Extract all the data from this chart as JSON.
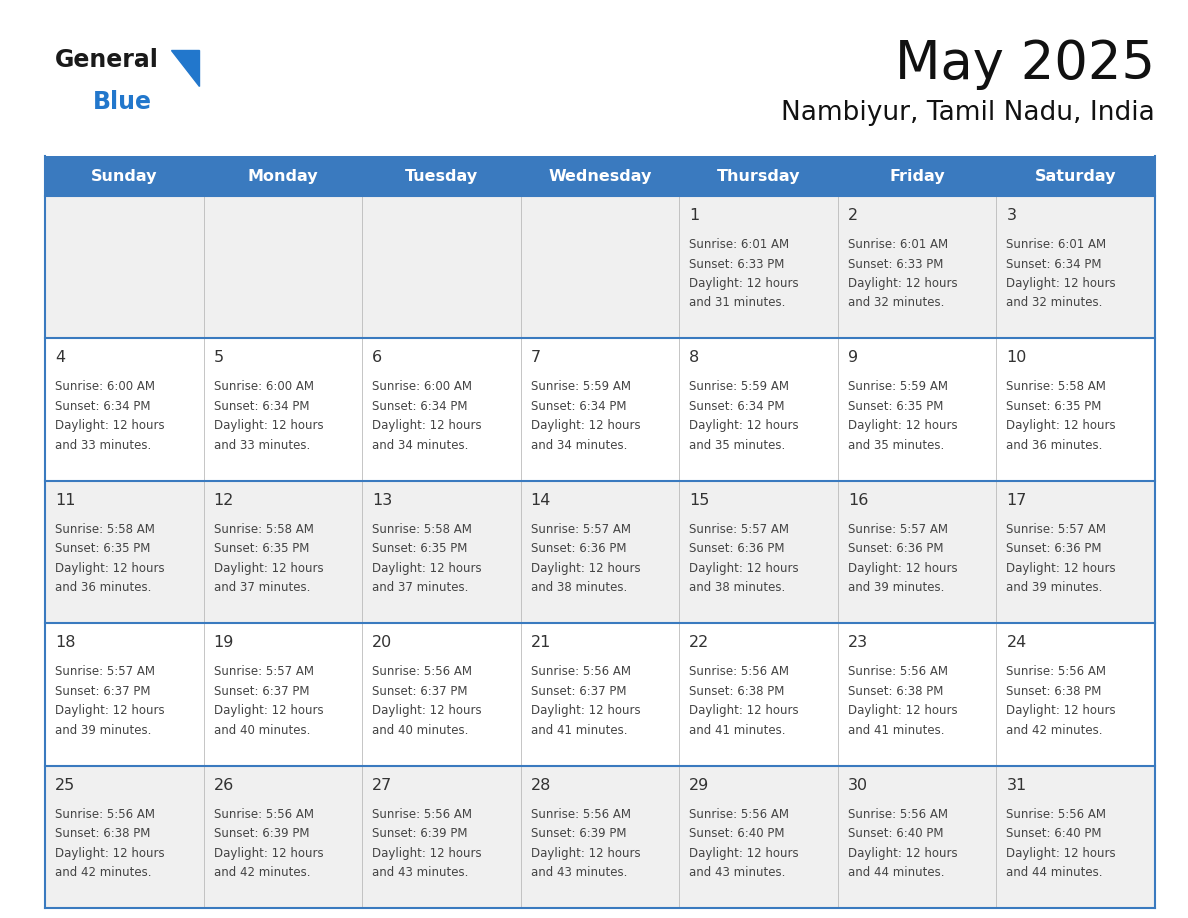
{
  "title": "May 2025",
  "subtitle": "Nambiyur, Tamil Nadu, India",
  "header_bg_color": "#3a7abf",
  "header_text_color": "#ffffff",
  "day_names": [
    "Sunday",
    "Monday",
    "Tuesday",
    "Wednesday",
    "Thursday",
    "Friday",
    "Saturday"
  ],
  "row_bg_colors": [
    "#f0f0f0",
    "#ffffff",
    "#f0f0f0",
    "#ffffff",
    "#f0f0f0"
  ],
  "grid_line_color": "#3a7abf",
  "date_color": "#333333",
  "info_color": "#444444",
  "logo_general_color": "#1a1a1a",
  "logo_blue_color": "#2277cc",
  "logo_triangle_color": "#2277cc",
  "calendar_data": [
    [
      null,
      null,
      null,
      null,
      {
        "day": 1,
        "sunrise": "6:01 AM",
        "sunset": "6:33 PM",
        "daylight_hours": 12,
        "daylight_minutes": 31
      },
      {
        "day": 2,
        "sunrise": "6:01 AM",
        "sunset": "6:33 PM",
        "daylight_hours": 12,
        "daylight_minutes": 32
      },
      {
        "day": 3,
        "sunrise": "6:01 AM",
        "sunset": "6:34 PM",
        "daylight_hours": 12,
        "daylight_minutes": 32
      }
    ],
    [
      {
        "day": 4,
        "sunrise": "6:00 AM",
        "sunset": "6:34 PM",
        "daylight_hours": 12,
        "daylight_minutes": 33
      },
      {
        "day": 5,
        "sunrise": "6:00 AM",
        "sunset": "6:34 PM",
        "daylight_hours": 12,
        "daylight_minutes": 33
      },
      {
        "day": 6,
        "sunrise": "6:00 AM",
        "sunset": "6:34 PM",
        "daylight_hours": 12,
        "daylight_minutes": 34
      },
      {
        "day": 7,
        "sunrise": "5:59 AM",
        "sunset": "6:34 PM",
        "daylight_hours": 12,
        "daylight_minutes": 34
      },
      {
        "day": 8,
        "sunrise": "5:59 AM",
        "sunset": "6:34 PM",
        "daylight_hours": 12,
        "daylight_minutes": 35
      },
      {
        "day": 9,
        "sunrise": "5:59 AM",
        "sunset": "6:35 PM",
        "daylight_hours": 12,
        "daylight_minutes": 35
      },
      {
        "day": 10,
        "sunrise": "5:58 AM",
        "sunset": "6:35 PM",
        "daylight_hours": 12,
        "daylight_minutes": 36
      }
    ],
    [
      {
        "day": 11,
        "sunrise": "5:58 AM",
        "sunset": "6:35 PM",
        "daylight_hours": 12,
        "daylight_minutes": 36
      },
      {
        "day": 12,
        "sunrise": "5:58 AM",
        "sunset": "6:35 PM",
        "daylight_hours": 12,
        "daylight_minutes": 37
      },
      {
        "day": 13,
        "sunrise": "5:58 AM",
        "sunset": "6:35 PM",
        "daylight_hours": 12,
        "daylight_minutes": 37
      },
      {
        "day": 14,
        "sunrise": "5:57 AM",
        "sunset": "6:36 PM",
        "daylight_hours": 12,
        "daylight_minutes": 38
      },
      {
        "day": 15,
        "sunrise": "5:57 AM",
        "sunset": "6:36 PM",
        "daylight_hours": 12,
        "daylight_minutes": 38
      },
      {
        "day": 16,
        "sunrise": "5:57 AM",
        "sunset": "6:36 PM",
        "daylight_hours": 12,
        "daylight_minutes": 39
      },
      {
        "day": 17,
        "sunrise": "5:57 AM",
        "sunset": "6:36 PM",
        "daylight_hours": 12,
        "daylight_minutes": 39
      }
    ],
    [
      {
        "day": 18,
        "sunrise": "5:57 AM",
        "sunset": "6:37 PM",
        "daylight_hours": 12,
        "daylight_minutes": 39
      },
      {
        "day": 19,
        "sunrise": "5:57 AM",
        "sunset": "6:37 PM",
        "daylight_hours": 12,
        "daylight_minutes": 40
      },
      {
        "day": 20,
        "sunrise": "5:56 AM",
        "sunset": "6:37 PM",
        "daylight_hours": 12,
        "daylight_minutes": 40
      },
      {
        "day": 21,
        "sunrise": "5:56 AM",
        "sunset": "6:37 PM",
        "daylight_hours": 12,
        "daylight_minutes": 41
      },
      {
        "day": 22,
        "sunrise": "5:56 AM",
        "sunset": "6:38 PM",
        "daylight_hours": 12,
        "daylight_minutes": 41
      },
      {
        "day": 23,
        "sunrise": "5:56 AM",
        "sunset": "6:38 PM",
        "daylight_hours": 12,
        "daylight_minutes": 41
      },
      {
        "day": 24,
        "sunrise": "5:56 AM",
        "sunset": "6:38 PM",
        "daylight_hours": 12,
        "daylight_minutes": 42
      }
    ],
    [
      {
        "day": 25,
        "sunrise": "5:56 AM",
        "sunset": "6:38 PM",
        "daylight_hours": 12,
        "daylight_minutes": 42
      },
      {
        "day": 26,
        "sunrise": "5:56 AM",
        "sunset": "6:39 PM",
        "daylight_hours": 12,
        "daylight_minutes": 42
      },
      {
        "day": 27,
        "sunrise": "5:56 AM",
        "sunset": "6:39 PM",
        "daylight_hours": 12,
        "daylight_minutes": 43
      },
      {
        "day": 28,
        "sunrise": "5:56 AM",
        "sunset": "6:39 PM",
        "daylight_hours": 12,
        "daylight_minutes": 43
      },
      {
        "day": 29,
        "sunrise": "5:56 AM",
        "sunset": "6:40 PM",
        "daylight_hours": 12,
        "daylight_minutes": 43
      },
      {
        "day": 30,
        "sunrise": "5:56 AM",
        "sunset": "6:40 PM",
        "daylight_hours": 12,
        "daylight_minutes": 44
      },
      {
        "day": 31,
        "sunrise": "5:56 AM",
        "sunset": "6:40 PM",
        "daylight_hours": 12,
        "daylight_minutes": 44
      }
    ]
  ]
}
